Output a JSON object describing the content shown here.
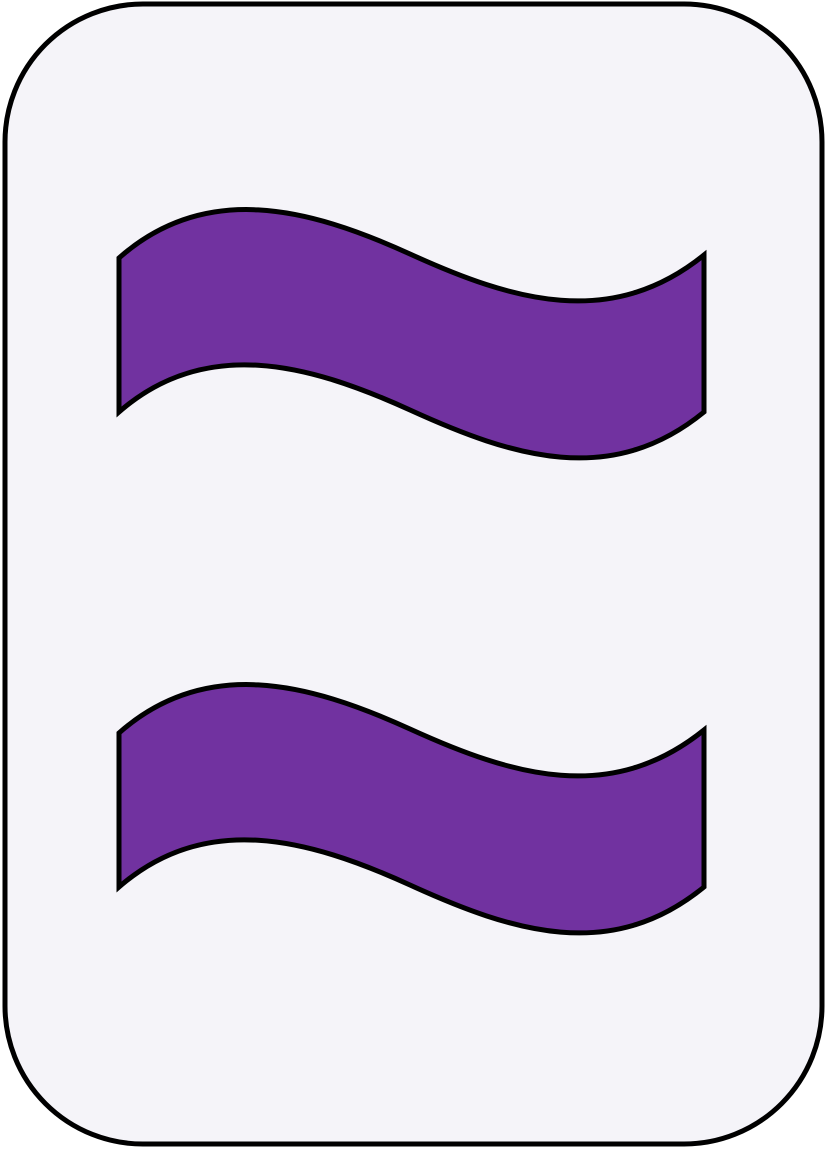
{
  "card": {
    "game": "Set",
    "count": 2,
    "shape": "squiggle",
    "shading": "solid",
    "colors": {
      "card_background": "#f5f4f9",
      "card_border": "#000000",
      "symbol_fill": "#7132a0",
      "symbol_outline": "#000000"
    },
    "icons": [
      "squiggle-icon",
      "squiggle-icon"
    ]
  }
}
